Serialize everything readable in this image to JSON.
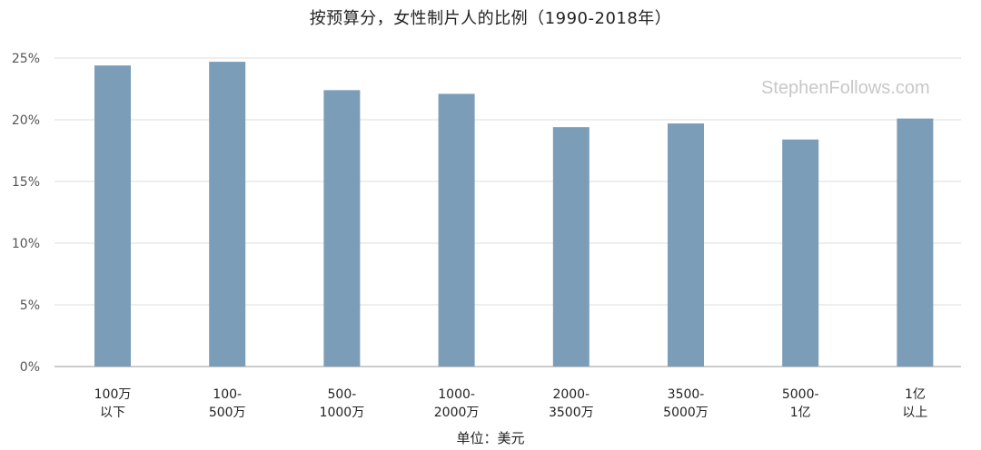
{
  "chart_data": {
    "type": "bar",
    "title": "按预算分，女性制片人的比例（1990-2018年）",
    "xlabel": "单位：美元",
    "ylabel": "",
    "categories": [
      [
        "100万",
        "以下"
      ],
      [
        "100-",
        "500万"
      ],
      [
        "500-",
        "1000万"
      ],
      [
        "1000-",
        "2000万"
      ],
      [
        "2000-",
        "3500万"
      ],
      [
        "3500-",
        "5000万"
      ],
      [
        "5000-",
        "1亿"
      ],
      [
        "1亿",
        "以上"
      ]
    ],
    "values": [
      24.4,
      24.7,
      22.4,
      22.1,
      19.4,
      19.7,
      18.4,
      20.1
    ],
    "ylim": [
      0,
      25
    ],
    "yticks": [
      "0%",
      "5%",
      "10%",
      "15%",
      "20%",
      "25%"
    ],
    "grid": true,
    "bar_color": "#7b9db8",
    "watermark": "StephenFollows.com"
  }
}
